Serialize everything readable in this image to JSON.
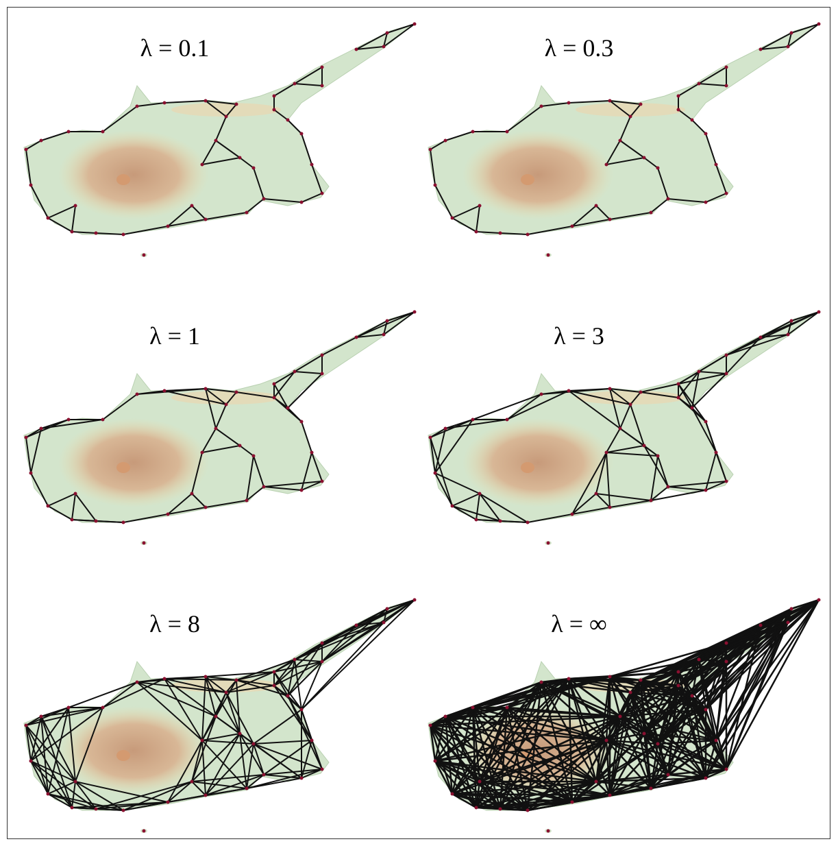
{
  "panels": [
    {
      "label": "λ = 0.1"
    },
    {
      "label": "λ = 0.3"
    },
    {
      "label": "λ = 1"
    },
    {
      "label": "λ = 3"
    },
    {
      "label": "λ = 8"
    },
    {
      "label": "λ = ∞"
    }
  ]
}
